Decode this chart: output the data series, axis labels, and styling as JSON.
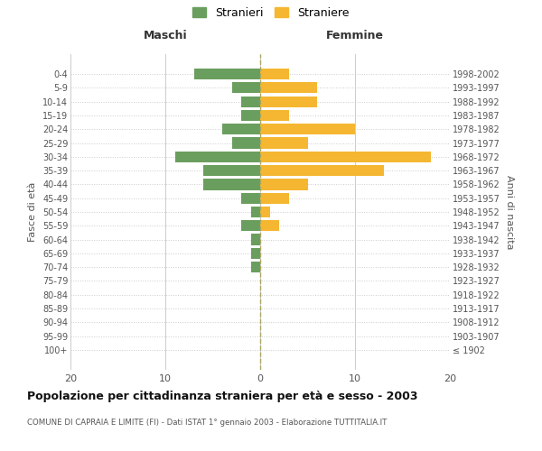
{
  "age_groups": [
    "100+",
    "95-99",
    "90-94",
    "85-89",
    "80-84",
    "75-79",
    "70-74",
    "65-69",
    "60-64",
    "55-59",
    "50-54",
    "45-49",
    "40-44",
    "35-39",
    "30-34",
    "25-29",
    "20-24",
    "15-19",
    "10-14",
    "5-9",
    "0-4"
  ],
  "birth_years": [
    "≤ 1902",
    "1903-1907",
    "1908-1912",
    "1913-1917",
    "1918-1922",
    "1923-1927",
    "1928-1932",
    "1933-1937",
    "1938-1942",
    "1943-1947",
    "1948-1952",
    "1953-1957",
    "1958-1962",
    "1963-1967",
    "1968-1972",
    "1973-1977",
    "1978-1982",
    "1983-1987",
    "1988-1992",
    "1993-1997",
    "1998-2002"
  ],
  "maschi": [
    0,
    0,
    0,
    0,
    0,
    0,
    1,
    1,
    1,
    2,
    1,
    2,
    6,
    6,
    9,
    3,
    4,
    2,
    2,
    3,
    7
  ],
  "femmine": [
    0,
    0,
    0,
    0,
    0,
    0,
    0,
    0,
    0,
    2,
    1,
    3,
    5,
    13,
    18,
    5,
    10,
    3,
    6,
    6,
    3
  ],
  "maschi_color": "#6a9e5e",
  "femmine_color": "#f5b731",
  "title": "Popolazione per cittadinanza straniera per età e sesso - 2003",
  "subtitle": "COMUNE DI CAPRAIA E LIMITE (FI) - Dati ISTAT 1° gennaio 2003 - Elaborazione TUTTITALIA.IT",
  "xlabel_left": "Maschi",
  "xlabel_right": "Femmine",
  "ylabel_left": "Fasce di età",
  "ylabel_right": "Anni di nascita",
  "legend_maschi": "Stranieri",
  "legend_femmine": "Straniere",
  "xlim": 20,
  "background_color": "#ffffff",
  "grid_color": "#cccccc",
  "bar_height": 0.8
}
